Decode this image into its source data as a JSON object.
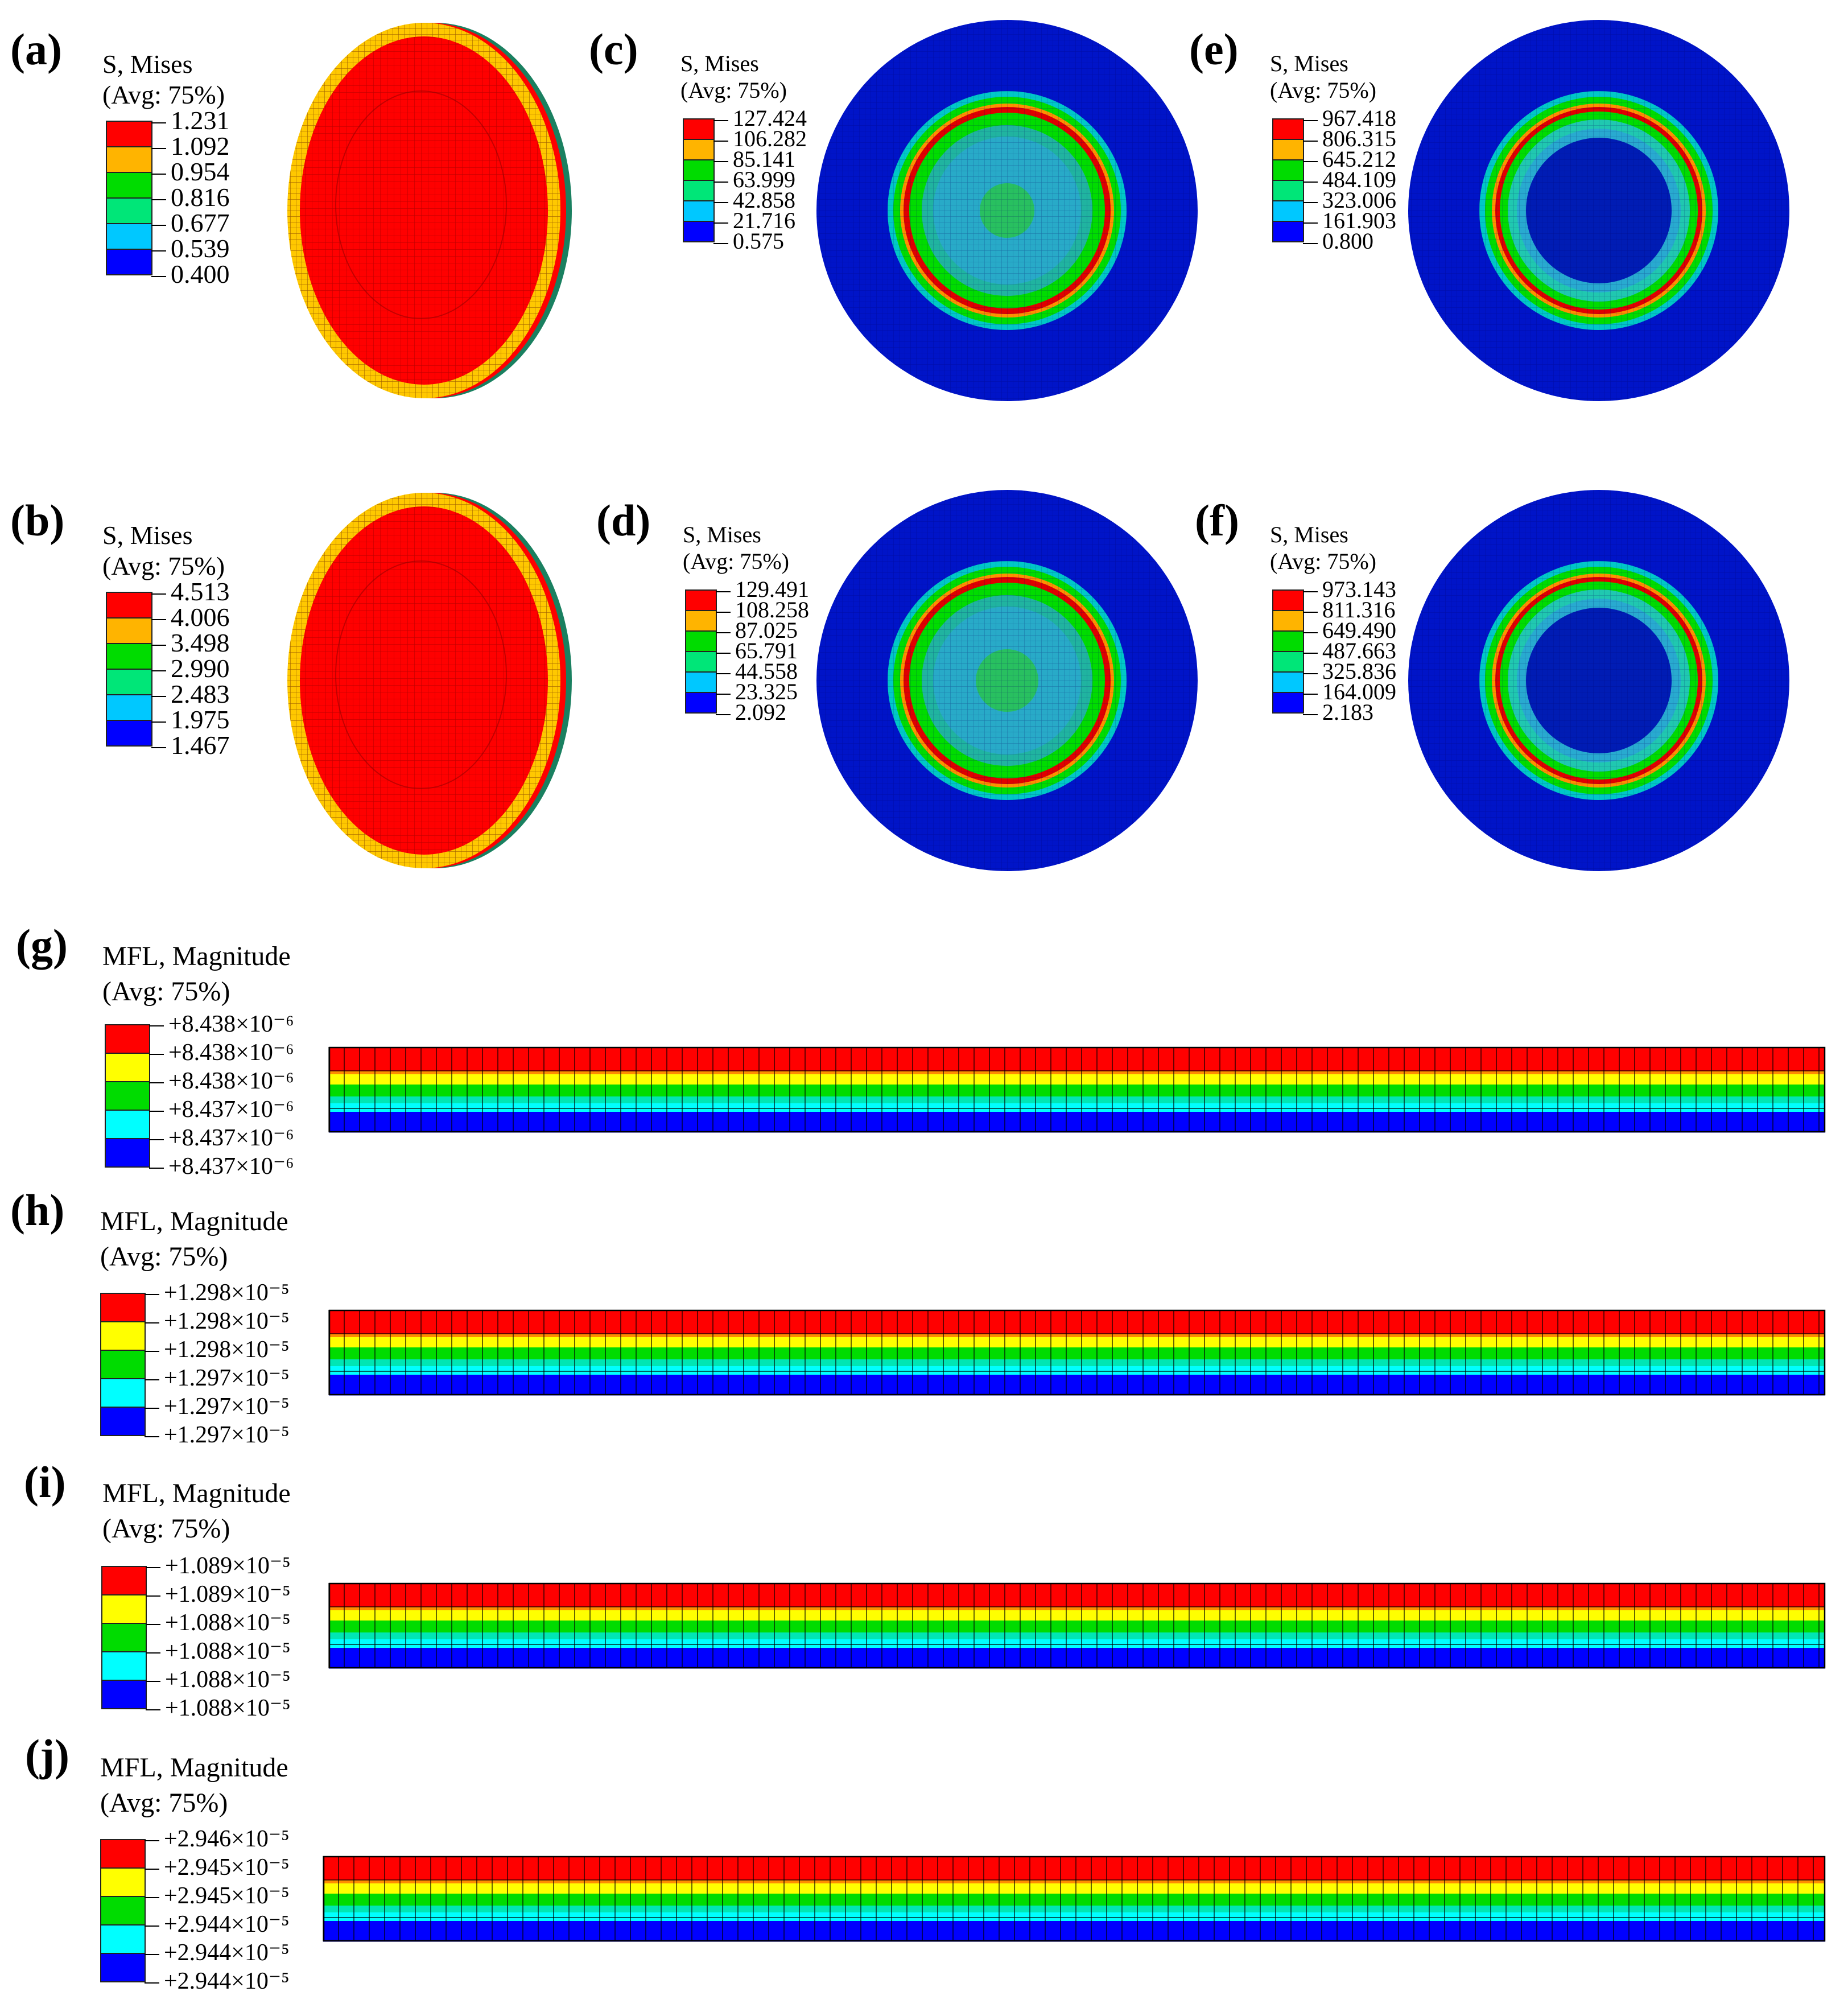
{
  "panels": [
    {
      "id": "a",
      "label": "(a)",
      "title": "S, Mises",
      "avg": "(Avg: 75%)",
      "levels": [
        "1.231",
        "1.092",
        "0.954",
        "0.816",
        "0.677",
        "0.539",
        "0.400"
      ]
    },
    {
      "id": "b",
      "label": "(b)",
      "title": "S, Mises",
      "avg": "(Avg: 75%)",
      "levels": [
        "4.513",
        "4.006",
        "3.498",
        "2.990",
        "2.483",
        "1.975",
        "1.467"
      ]
    },
    {
      "id": "c",
      "label": "(c)",
      "title": "S, Mises",
      "avg": "(Avg: 75%)",
      "levels": [
        "127.424",
        "106.282",
        "85.141",
        "63.999",
        "42.858",
        "21.716",
        "0.575"
      ]
    },
    {
      "id": "d",
      "label": "(d)",
      "title": "S, Mises",
      "avg": "(Avg: 75%)",
      "levels": [
        "129.491",
        "108.258",
        "87.025",
        "65.791",
        "44.558",
        "23.325",
        "2.092"
      ]
    },
    {
      "id": "e",
      "label": "(e)",
      "title": "S, Mises",
      "avg": "(Avg: 75%)",
      "levels": [
        "967.418",
        "806.315",
        "645.212",
        "484.109",
        "323.006",
        "161.903",
        "0.800"
      ]
    },
    {
      "id": "f",
      "label": "(f)",
      "title": "S, Mises",
      "avg": "(Avg: 75%)",
      "levels": [
        "973.143",
        "811.316",
        "649.490",
        "487.663",
        "325.836",
        "164.009",
        "2.183"
      ]
    },
    {
      "id": "g",
      "label": "(g)",
      "title": "MFL, Magnitude",
      "avg": "(Avg: 75%)",
      "levels": [
        "+8.438×10⁻⁶",
        "+8.438×10⁻⁶",
        "+8.438×10⁻⁶",
        "+8.437×10⁻⁶",
        "+8.437×10⁻⁶",
        "+8.437×10⁻⁶"
      ]
    },
    {
      "id": "h",
      "label": "(h)",
      "title": "MFL, Magnitude",
      "avg": "(Avg: 75%)",
      "levels": [
        "+1.298×10⁻⁵",
        "+1.298×10⁻⁵",
        "+1.298×10⁻⁵",
        "+1.297×10⁻⁵",
        "+1.297×10⁻⁵",
        "+1.297×10⁻⁵"
      ]
    },
    {
      "id": "i",
      "label": "(i)",
      "title": "MFL, Magnitude",
      "avg": "(Avg: 75%)",
      "levels": [
        "+1.089×10⁻⁵",
        "+1.089×10⁻⁵",
        "+1.088×10⁻⁵",
        "+1.088×10⁻⁵",
        "+1.088×10⁻⁵",
        "+1.088×10⁻⁵"
      ]
    },
    {
      "id": "j",
      "label": "(j)",
      "title": "MFL, Magnitude",
      "avg": "(Avg: 75%)",
      "levels": [
        "+2.946×10⁻⁵",
        "+2.945×10⁻⁵",
        "+2.945×10⁻⁵",
        "+2.944×10⁻⁵",
        "+2.944×10⁻⁵",
        "+2.944×10⁻⁵"
      ]
    }
  ],
  "colors": {
    "mises_scale": [
      "#ff0000",
      "#ffb400",
      "#00dc00",
      "#00e678",
      "#00c8ff",
      "#0000ff"
    ],
    "mfl_scale": [
      "#ff0000",
      "#ffff00",
      "#00dc00",
      "#00ffff",
      "#0000ff"
    ],
    "disk_field": "#0014c8",
    "shell_red": "#ff0000",
    "shell_rim": "#ffc800"
  }
}
